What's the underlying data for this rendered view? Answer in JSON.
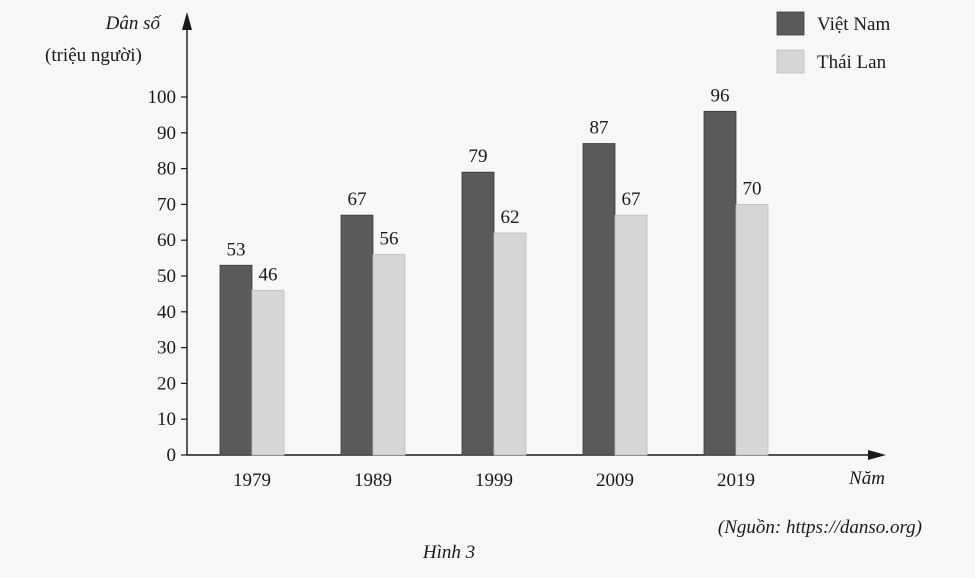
{
  "chart_data": {
    "type": "bar",
    "ylabel": "Dân số",
    "ylabel_unit": "(triệu người)",
    "xlabel": "Năm",
    "categories": [
      "1979",
      "1989",
      "1999",
      "2009",
      "2019"
    ],
    "series": [
      {
        "name": "Việt Nam",
        "color": "#5a5a5a",
        "values": [
          53,
          67,
          79,
          87,
          96
        ]
      },
      {
        "name": "Thái Lan",
        "color": "#d6d6d6",
        "values": [
          46,
          56,
          62,
          67,
          70
        ]
      }
    ],
    "ylim": [
      0,
      100
    ],
    "yticks": [
      0,
      10,
      20,
      30,
      40,
      50,
      60,
      70,
      80,
      90,
      100
    ],
    "legend_position": "top-right",
    "grid": false,
    "source": "(Nguồn: https://danso.org)",
    "caption": "Hình 3"
  }
}
